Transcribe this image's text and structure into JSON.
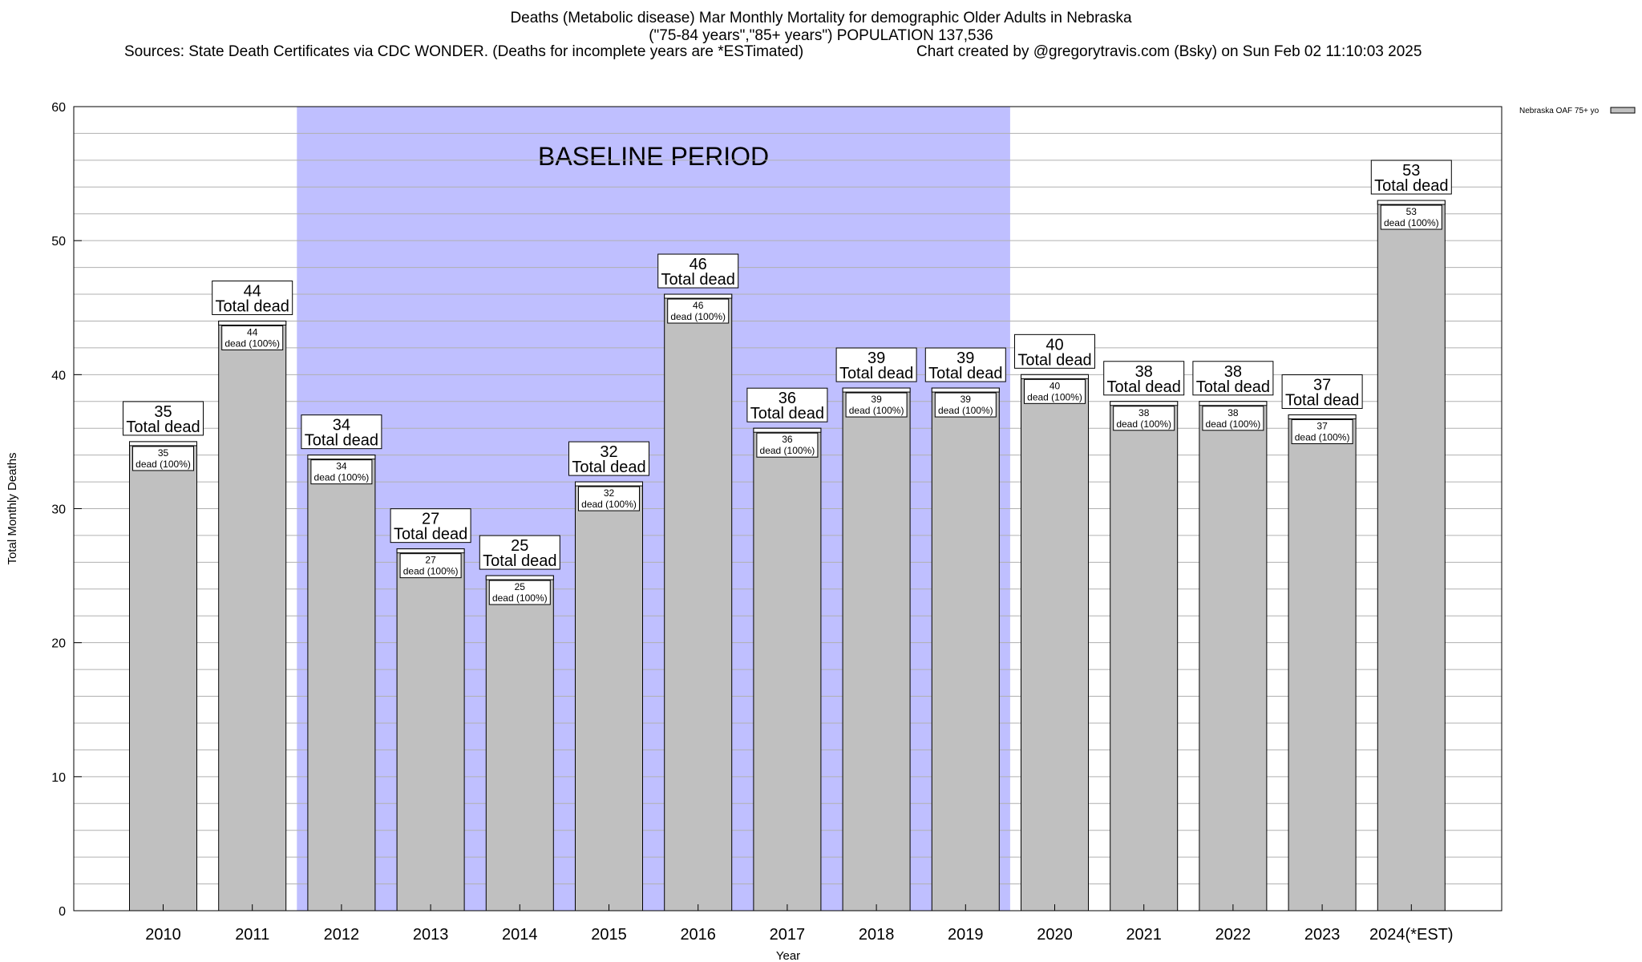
{
  "title": {
    "line1": "Deaths (Metabolic disease) Mar Monthly Mortality for demographic Older Adults in Nebraska",
    "line2": "(\"75-84 years\",\"85+ years\") POPULATION 137,536",
    "sources": "Sources: State Death Certificates via CDC WONDER. (Deaths for incomplete years are *ESTimated)",
    "credit": "Chart created by @gregorytravis.com (Bsky) on Sun Feb 02 11:10:03 2025"
  },
  "chart_data": {
    "type": "bar",
    "categories": [
      "2010",
      "2011",
      "2012",
      "2013",
      "2014",
      "2015",
      "2016",
      "2017",
      "2018",
      "2019",
      "2020",
      "2021",
      "2022",
      "2023",
      "2024(*EST)"
    ],
    "series": [
      {
        "name": "Nebraska OAF 75+ yo",
        "values": [
          35,
          44,
          34,
          27,
          25,
          32,
          46,
          36,
          39,
          39,
          40,
          38,
          38,
          37,
          53
        ]
      }
    ],
    "xlabel": "Year",
    "ylabel": "Total Monthly Deaths",
    "ylim": [
      0,
      60
    ],
    "yticks": [
      0,
      10,
      20,
      30,
      40,
      50,
      60
    ],
    "grid": true,
    "legend_position": "top-right",
    "top_label_suffix": "Total dead",
    "inner_label_suffix": "dead (100%)",
    "baseline": {
      "label": "BASELINE PERIOD",
      "from": "2012",
      "to": "2019"
    },
    "colors": {
      "bar": "#c0c0c0",
      "baseline": "#bfbfff",
      "grid": "#b0b0b0"
    }
  }
}
